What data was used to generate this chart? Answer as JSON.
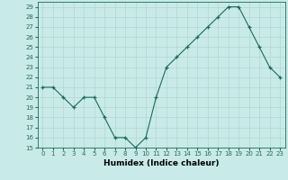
{
  "x": [
    0,
    1,
    2,
    3,
    4,
    5,
    6,
    7,
    8,
    9,
    10,
    11,
    12,
    13,
    14,
    15,
    16,
    17,
    18,
    19,
    20,
    21,
    22,
    23
  ],
  "y": [
    21,
    21,
    20,
    19,
    20,
    20,
    18,
    16,
    16,
    15,
    16,
    20,
    23,
    24,
    25,
    26,
    27,
    28,
    29,
    29,
    27,
    25,
    23,
    22
  ],
  "xlabel": "Humidex (Indice chaleur)",
  "xlim": [
    -0.5,
    23.5
  ],
  "ylim": [
    15,
    29.5
  ],
  "yticks": [
    15,
    16,
    17,
    18,
    19,
    20,
    21,
    22,
    23,
    24,
    25,
    26,
    27,
    28,
    29
  ],
  "xticks": [
    0,
    1,
    2,
    3,
    4,
    5,
    6,
    7,
    8,
    9,
    10,
    11,
    12,
    13,
    14,
    15,
    16,
    17,
    18,
    19,
    20,
    21,
    22,
    23
  ],
  "line_color": "#1a6b5a",
  "bg_color": "#c8eae8",
  "grid_color": "#aad4ce",
  "label_fontsize": 6.5,
  "tick_fontsize": 5.0,
  "tick_color": "#2a6b5a"
}
